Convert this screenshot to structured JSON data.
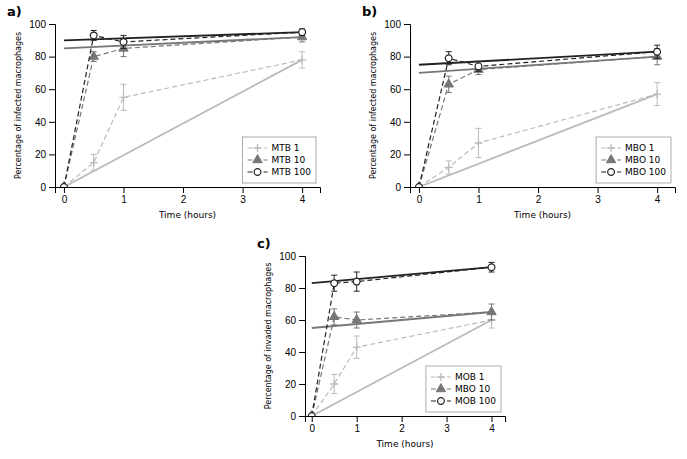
{
  "chart_data": [
    {
      "type": "line",
      "title": "a)",
      "xlabel": "Time (hours)",
      "ylabel": "Percentage of infected macrophages",
      "x": [
        0,
        0.5,
        1,
        4
      ],
      "xlim": [
        -0.15,
        4.3
      ],
      "xticks": [
        0,
        1,
        2,
        3,
        4
      ],
      "ylim": [
        0,
        100
      ],
      "yticks": [
        0,
        20,
        40,
        60,
        80,
        100
      ],
      "grid": false,
      "legend": "lower right",
      "series": [
        {
          "name": "MTB 1",
          "color": "#bbbbbb",
          "marker": "plus",
          "line_style": "dashed",
          "values": [
            0,
            15,
            55,
            78
          ],
          "yerr": [
            0,
            5,
            8,
            5
          ]
        },
        {
          "name": "MTB 10",
          "color": "#777777",
          "marker": "triangle",
          "line_style": "dashed",
          "values": [
            0,
            80,
            85,
            92
          ],
          "yerr": [
            0,
            3,
            5,
            3
          ]
        },
        {
          "name": "MTB 100",
          "color": "#222222",
          "marker": "circle",
          "line_style": "dashed",
          "values": [
            0,
            93,
            89,
            95
          ],
          "yerr": [
            0,
            3,
            4,
            2
          ]
        }
      ],
      "trend_lines": [
        {
          "color": "#bbbbbb",
          "line_style": "solid",
          "x": [
            0,
            4
          ],
          "values": [
            0,
            78
          ]
        },
        {
          "color": "#777777",
          "line_style": "solid",
          "x": [
            0,
            4
          ],
          "values": [
            85,
            92
          ]
        },
        {
          "color": "#222222",
          "line_style": "solid",
          "x": [
            0,
            4
          ],
          "values": [
            90,
            95
          ]
        }
      ]
    },
    {
      "type": "line",
      "title": "b)",
      "xlabel": "Time (hours)",
      "ylabel": "Percentage of infected macrophages",
      "x": [
        0,
        0.5,
        1,
        4
      ],
      "xlim": [
        -0.15,
        4.3
      ],
      "xticks": [
        0,
        1,
        2,
        3,
        4
      ],
      "ylim": [
        0,
        100
      ],
      "yticks": [
        0,
        20,
        40,
        60,
        80,
        100
      ],
      "grid": false,
      "legend": "lower right",
      "series": [
        {
          "name": "MBO 1",
          "color": "#bbbbbb",
          "marker": "plus",
          "line_style": "dashed",
          "values": [
            0,
            12,
            27,
            57
          ],
          "yerr": [
            0,
            4,
            9,
            7
          ]
        },
        {
          "name": "MBO 10",
          "color": "#777777",
          "marker": "triangle",
          "line_style": "dashed",
          "values": [
            0,
            63,
            72,
            80
          ],
          "yerr": [
            0,
            5,
            3,
            5
          ]
        },
        {
          "name": "MBO 100",
          "color": "#222222",
          "marker": "circle",
          "line_style": "dashed",
          "values": [
            0,
            79,
            74,
            83
          ],
          "yerr": [
            0,
            4,
            3,
            4
          ]
        }
      ],
      "trend_lines": [
        {
          "color": "#bbbbbb",
          "line_style": "solid",
          "x": [
            0,
            4
          ],
          "values": [
            0,
            57
          ]
        },
        {
          "color": "#777777",
          "line_style": "solid",
          "x": [
            0,
            4
          ],
          "values": [
            70,
            80
          ]
        },
        {
          "color": "#222222",
          "line_style": "solid",
          "x": [
            0,
            4
          ],
          "values": [
            75,
            83
          ]
        }
      ]
    },
    {
      "type": "line",
      "title": "c)",
      "xlabel": "Time (hours)",
      "ylabel": "Percentage of invaded macrophages",
      "x": [
        0,
        0.5,
        1,
        4
      ],
      "xlim": [
        -0.15,
        4.3
      ],
      "xticks": [
        0,
        1,
        2,
        3,
        4
      ],
      "ylim": [
        0,
        100
      ],
      "yticks": [
        0,
        20,
        40,
        60,
        80,
        100
      ],
      "grid": false,
      "legend": "lower right",
      "series": [
        {
          "name": "MOB 1",
          "color": "#bbbbbb",
          "marker": "plus",
          "line_style": "dashed",
          "values": [
            0,
            20,
            43,
            60
          ],
          "yerr": [
            0,
            6,
            7,
            5
          ]
        },
        {
          "name": "MBO 10",
          "color": "#777777",
          "marker": "triangle",
          "line_style": "dashed",
          "values": [
            0,
            62,
            60,
            65
          ],
          "yerr": [
            0,
            5,
            5,
            5
          ]
        },
        {
          "name": "MOB 100",
          "color": "#222222",
          "marker": "circle",
          "line_style": "dashed",
          "values": [
            0,
            83,
            84,
            93
          ],
          "yerr": [
            0,
            5,
            6,
            3
          ]
        }
      ],
      "trend_lines": [
        {
          "color": "#bbbbbb",
          "line_style": "solid",
          "x": [
            0,
            4
          ],
          "values": [
            0,
            60
          ]
        },
        {
          "color": "#777777",
          "line_style": "solid",
          "x": [
            0,
            4
          ],
          "values": [
            55,
            65
          ]
        },
        {
          "color": "#222222",
          "line_style": "solid",
          "x": [
            0,
            4
          ],
          "values": [
            83,
            93
          ]
        }
      ]
    }
  ]
}
